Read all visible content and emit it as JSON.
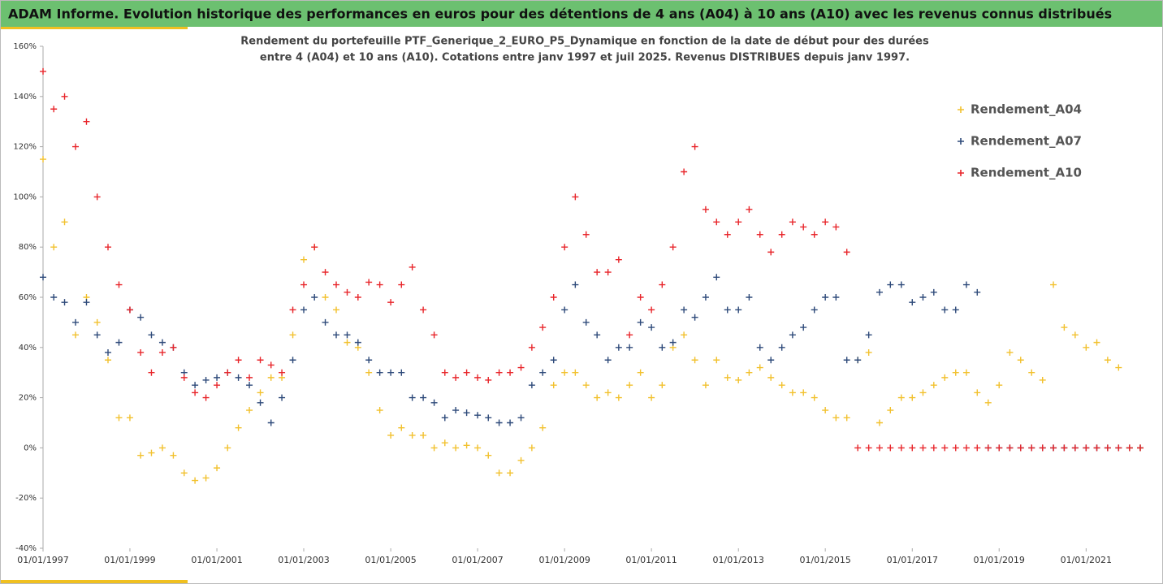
{
  "chart_data": {
    "type": "scatter",
    "title": "ADAM Informe. Evolution historique des performances en euros pour des détentions de 4 ans (A04) à 10 ans (A10) avec les revenus connus distribués",
    "subtitle": [
      "Rendement du portefeuille PTF_Generique_2_EURO_P5_Dynamique  en fonction de la date de début pour des durées",
      "entre 4 (A04) et 10 ans (A10). Cotations entre janv 1997 et juil 2025. Revenus DISTRIBUES depuis janv 1997."
    ],
    "legend": "top-right",
    "grid": false,
    "xlim": [
      "1997-01-01",
      "2022-04-01"
    ],
    "xticks": [
      {
        "value": "1997-01-01",
        "label": "01/01/1997"
      },
      {
        "value": "1999-01-01",
        "label": "01/01/1999"
      },
      {
        "value": "2001-01-01",
        "label": "01/01/2001"
      },
      {
        "value": "2003-01-01",
        "label": "01/01/2003"
      },
      {
        "value": "2005-01-01",
        "label": "01/01/2005"
      },
      {
        "value": "2007-01-01",
        "label": "01/01/2007"
      },
      {
        "value": "2009-01-01",
        "label": "01/01/2009"
      },
      {
        "value": "2011-01-01",
        "label": "01/01/2011"
      },
      {
        "value": "2013-01-01",
        "label": "01/01/2013"
      },
      {
        "value": "2015-01-01",
        "label": "01/01/2015"
      },
      {
        "value": "2017-01-01",
        "label": "01/01/2017"
      },
      {
        "value": "2019-01-01",
        "label": "01/01/2019"
      },
      {
        "value": "2021-01-01",
        "label": "01/01/2021"
      }
    ],
    "ylim": [
      -40,
      160
    ],
    "yticks": [
      {
        "value": -40,
        "label": "-40%"
      },
      {
        "value": -20,
        "label": "-20%"
      },
      {
        "value": 0,
        "label": "0%"
      },
      {
        "value": 20,
        "label": "20%"
      },
      {
        "value": 40,
        "label": "40%"
      },
      {
        "value": 60,
        "label": "60%"
      },
      {
        "value": 80,
        "label": "80%"
      },
      {
        "value": 100,
        "label": "100%"
      },
      {
        "value": 120,
        "label": "120%"
      },
      {
        "value": 140,
        "label": "140%"
      },
      {
        "value": 160,
        "label": "160%"
      }
    ],
    "x": [
      "1997-01-01",
      "1997-04-01",
      "1997-07-01",
      "1997-10-01",
      "1998-01-01",
      "1998-04-01",
      "1998-07-01",
      "1998-10-01",
      "1999-01-01",
      "1999-04-01",
      "1999-07-01",
      "1999-10-01",
      "2000-01-01",
      "2000-04-01",
      "2000-07-01",
      "2000-10-01",
      "2001-01-01",
      "2001-04-01",
      "2001-07-01",
      "2001-10-01",
      "2002-01-01",
      "2002-04-01",
      "2002-07-01",
      "2002-10-01",
      "2003-01-01",
      "2003-04-01",
      "2003-07-01",
      "2003-10-01",
      "2004-01-01",
      "2004-04-01",
      "2004-07-01",
      "2004-10-01",
      "2005-01-01",
      "2005-04-01",
      "2005-07-01",
      "2005-10-01",
      "2006-01-01",
      "2006-04-01",
      "2006-07-01",
      "2006-10-01",
      "2007-01-01",
      "2007-04-01",
      "2007-07-01",
      "2007-10-01",
      "2008-01-01",
      "2008-04-01",
      "2008-07-01",
      "2008-10-01",
      "2009-01-01",
      "2009-04-01",
      "2009-07-01",
      "2009-10-01",
      "2010-01-01",
      "2010-04-01",
      "2010-07-01",
      "2010-10-01",
      "2011-01-01",
      "2011-04-01",
      "2011-07-01",
      "2011-10-01",
      "2012-01-01",
      "2012-04-01",
      "2012-07-01",
      "2012-10-01",
      "2013-01-01",
      "2013-04-01",
      "2013-07-01",
      "2013-10-01",
      "2014-01-01",
      "2014-04-01",
      "2014-07-01",
      "2014-10-01",
      "2015-01-01",
      "2015-04-01",
      "2015-07-01",
      "2015-10-01",
      "2016-01-01",
      "2016-04-01",
      "2016-07-01",
      "2016-10-01",
      "2017-01-01",
      "2017-04-01",
      "2017-07-01",
      "2017-10-01",
      "2018-01-01",
      "2018-04-01",
      "2018-07-01",
      "2018-10-01",
      "2019-01-01",
      "2019-04-01",
      "2019-07-01",
      "2019-10-01",
      "2020-01-01",
      "2020-04-01",
      "2020-07-01",
      "2020-10-01",
      "2021-01-01",
      "2021-04-01",
      "2021-07-01",
      "2021-10-01",
      "2022-01-01",
      "2022-04-01"
    ],
    "series": [
      {
        "name": "Rendement_A04",
        "color": "#f2c12e",
        "values": [
          115,
          80,
          90,
          45,
          60,
          50,
          35,
          12,
          12,
          -3,
          -2,
          0,
          -3,
          -10,
          -13,
          -12,
          -8,
          0,
          8,
          15,
          22,
          28,
          28,
          45,
          75,
          80,
          60,
          55,
          42,
          40,
          30,
          15,
          5,
          8,
          5,
          5,
          0,
          2,
          0,
          1,
          0,
          -3,
          -10,
          -10,
          -5,
          0,
          8,
          25,
          30,
          30,
          25,
          20,
          22,
          20,
          25,
          30,
          20,
          25,
          40,
          45,
          35,
          25,
          35,
          28,
          27,
          30,
          32,
          28,
          25,
          22,
          22,
          20,
          15,
          12,
          12,
          35,
          38,
          10,
          15,
          20,
          20,
          22,
          25,
          28,
          30,
          30,
          22,
          18,
          25,
          38,
          35,
          30,
          27,
          65,
          48,
          45,
          40,
          42,
          35,
          32,
          0,
          0
        ]
      },
      {
        "name": "Rendement_A07",
        "color": "#2e4a7a",
        "values": [
          68,
          60,
          58,
          50,
          58,
          45,
          38,
          42,
          55,
          52,
          45,
          42,
          40,
          30,
          25,
          27,
          28,
          30,
          28,
          25,
          18,
          10,
          20,
          35,
          55,
          60,
          50,
          45,
          45,
          42,
          35,
          30,
          30,
          30,
          20,
          20,
          18,
          12,
          15,
          14,
          13,
          12,
          10,
          10,
          12,
          25,
          30,
          35,
          55,
          65,
          50,
          45,
          35,
          40,
          40,
          50,
          48,
          40,
          42,
          55,
          52,
          60,
          68,
          55,
          55,
          60,
          40,
          35,
          40,
          45,
          48,
          55,
          60,
          60,
          35,
          35,
          45,
          62,
          65,
          65,
          58,
          60,
          62,
          55,
          55,
          65,
          62,
          0,
          0,
          0,
          0,
          0,
          0,
          0,
          0,
          0,
          0,
          0,
          0,
          0,
          0,
          0
        ]
      },
      {
        "name": "Rendement_A10",
        "color": "#e8262b",
        "values": [
          150,
          135,
          140,
          120,
          130,
          100,
          80,
          65,
          55,
          38,
          30,
          38,
          40,
          28,
          22,
          20,
          25,
          30,
          35,
          28,
          35,
          33,
          30,
          55,
          65,
          80,
          70,
          65,
          62,
          60,
          66,
          65,
          58,
          65,
          72,
          55,
          45,
          30,
          28,
          30,
          28,
          27,
          30,
          30,
          32,
          40,
          48,
          60,
          80,
          100,
          85,
          70,
          70,
          75,
          45,
          60,
          55,
          65,
          80,
          110,
          120,
          95,
          90,
          85,
          90,
          95,
          85,
          78,
          85,
          90,
          88,
          85,
          90,
          88,
          78,
          0,
          0,
          0,
          0,
          0,
          0,
          0,
          0,
          0,
          0,
          0,
          0,
          0,
          0,
          0,
          0,
          0,
          0,
          0,
          0,
          0,
          0,
          0,
          0,
          0,
          0,
          0
        ]
      }
    ]
  }
}
